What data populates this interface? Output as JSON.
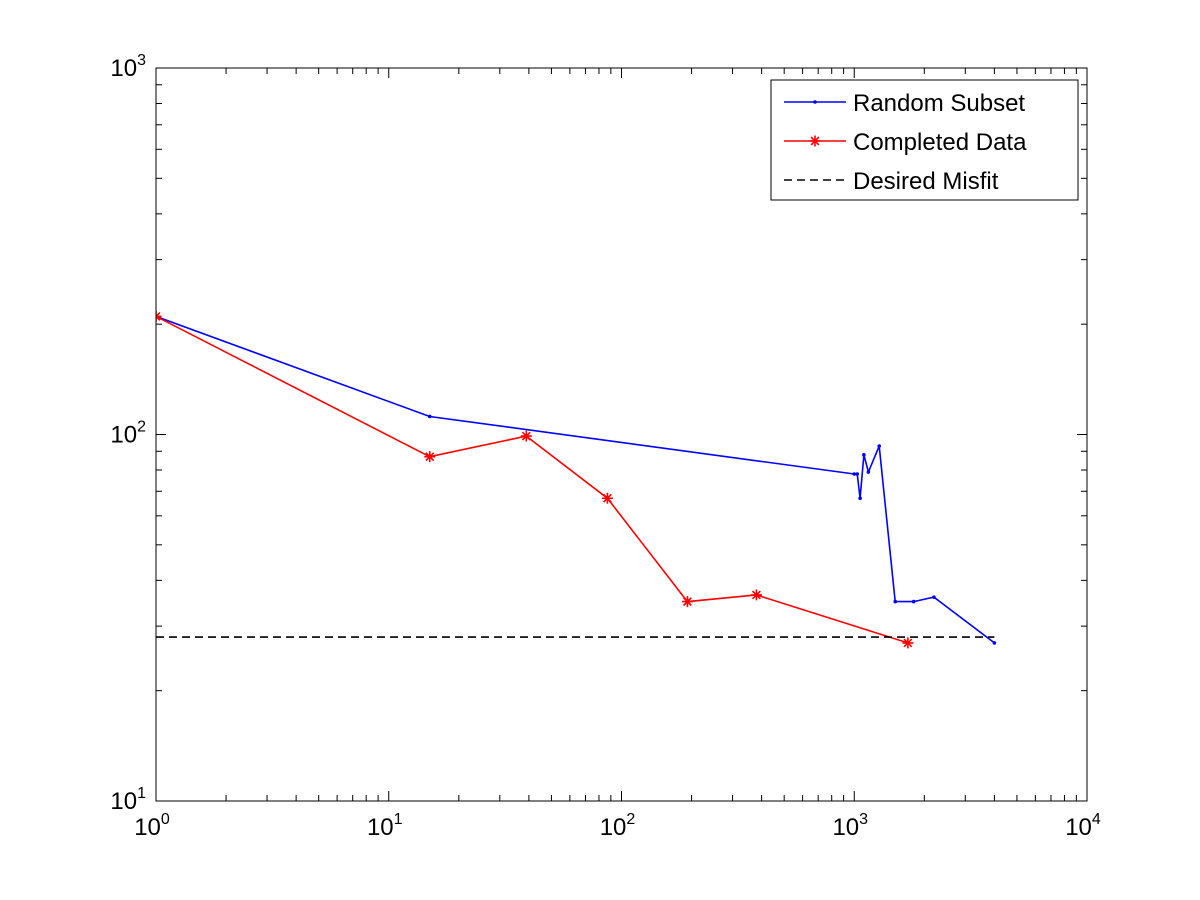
{
  "chart_data": {
    "type": "line",
    "title": "",
    "xlabel": "",
    "ylabel": "",
    "xscale": "log",
    "yscale": "log",
    "xlim": [
      1,
      10000
    ],
    "ylim": [
      10,
      1000
    ],
    "grid": false,
    "legend_position": "top-right",
    "x_ticks": [
      {
        "base": "10",
        "exp": "0"
      },
      {
        "base": "10",
        "exp": "1"
      },
      {
        "base": "10",
        "exp": "2"
      },
      {
        "base": "10",
        "exp": "3"
      },
      {
        "base": "10",
        "exp": "4"
      }
    ],
    "y_ticks": [
      {
        "base": "10",
        "exp": "1"
      },
      {
        "base": "10",
        "exp": "2"
      },
      {
        "base": "10",
        "exp": "3"
      }
    ],
    "series": [
      {
        "name": "Random Subset",
        "color": "#0000ff",
        "marker": "dot",
        "line": "solid",
        "x": [
          1,
          15,
          1000,
          1030,
          1060,
          1100,
          1150,
          1280,
          1500,
          1800,
          2200,
          4000
        ],
        "y": [
          210,
          112,
          78,
          78,
          67,
          88,
          79,
          93,
          35,
          35,
          36,
          27
        ]
      },
      {
        "name": "Completed Data",
        "color": "#ff0000",
        "marker": "star",
        "line": "solid",
        "x": [
          1,
          15,
          39,
          87,
          192,
          380,
          1700
        ],
        "y": [
          210,
          87,
          99,
          67,
          35,
          36.5,
          27
        ]
      },
      {
        "name": "Desired Misfit",
        "color": "#000000",
        "marker": "none",
        "line": "dashed",
        "x": [
          1,
          4000
        ],
        "y": [
          28,
          28
        ]
      }
    ]
  }
}
